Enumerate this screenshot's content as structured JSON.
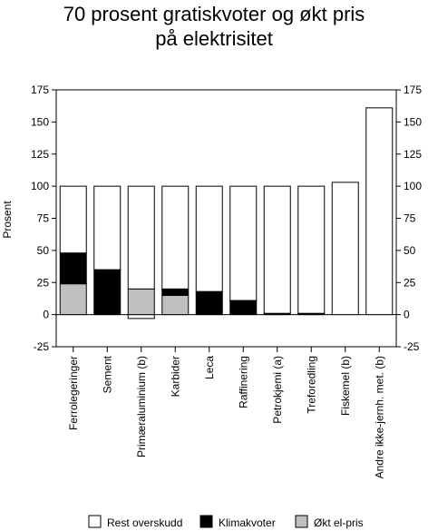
{
  "chart_data": {
    "type": "bar",
    "stacked": true,
    "title_lines": [
      "70 prosent gratiskvoter og økt pris",
      "på elektrisitet"
    ],
    "ylabel": "Prosent",
    "ylim": [
      -25,
      175
    ],
    "yticks": [
      -25,
      0,
      25,
      50,
      75,
      100,
      125,
      150,
      175
    ],
    "yticks_right": true,
    "grid": false,
    "legend_position": "bottom",
    "categories": [
      "Ferrolegeringer",
      "Sement",
      "Primæraluminium (b)",
      "Karbider",
      "Leca",
      "Raffinering",
      "Petrokjemi (a)",
      "Treforedling",
      "Fiskemel (b)",
      "Andre ikke-jernh. met. (b)"
    ],
    "series": [
      {
        "name": "Økt el-pris",
        "color": "#c0c0c0",
        "values": [
          24,
          0,
          20,
          15,
          0,
          0,
          0,
          0,
          0,
          0
        ]
      },
      {
        "name": "Klimakvoter",
        "color": "#000000",
        "values": [
          24,
          35,
          0,
          5,
          18,
          11,
          1,
          1,
          0,
          0
        ]
      },
      {
        "name": "Rest overskudd",
        "color": "#ffffff",
        "values": [
          52,
          65,
          80,
          80,
          82,
          89,
          99,
          99,
          103,
          161
        ]
      }
    ],
    "negative_values": [
      0,
      0,
      -3,
      0,
      0,
      0,
      0,
      0,
      0,
      0
    ],
    "legend_order": [
      "Rest overskudd",
      "Klimakvoter",
      "Økt el-pris"
    ]
  }
}
